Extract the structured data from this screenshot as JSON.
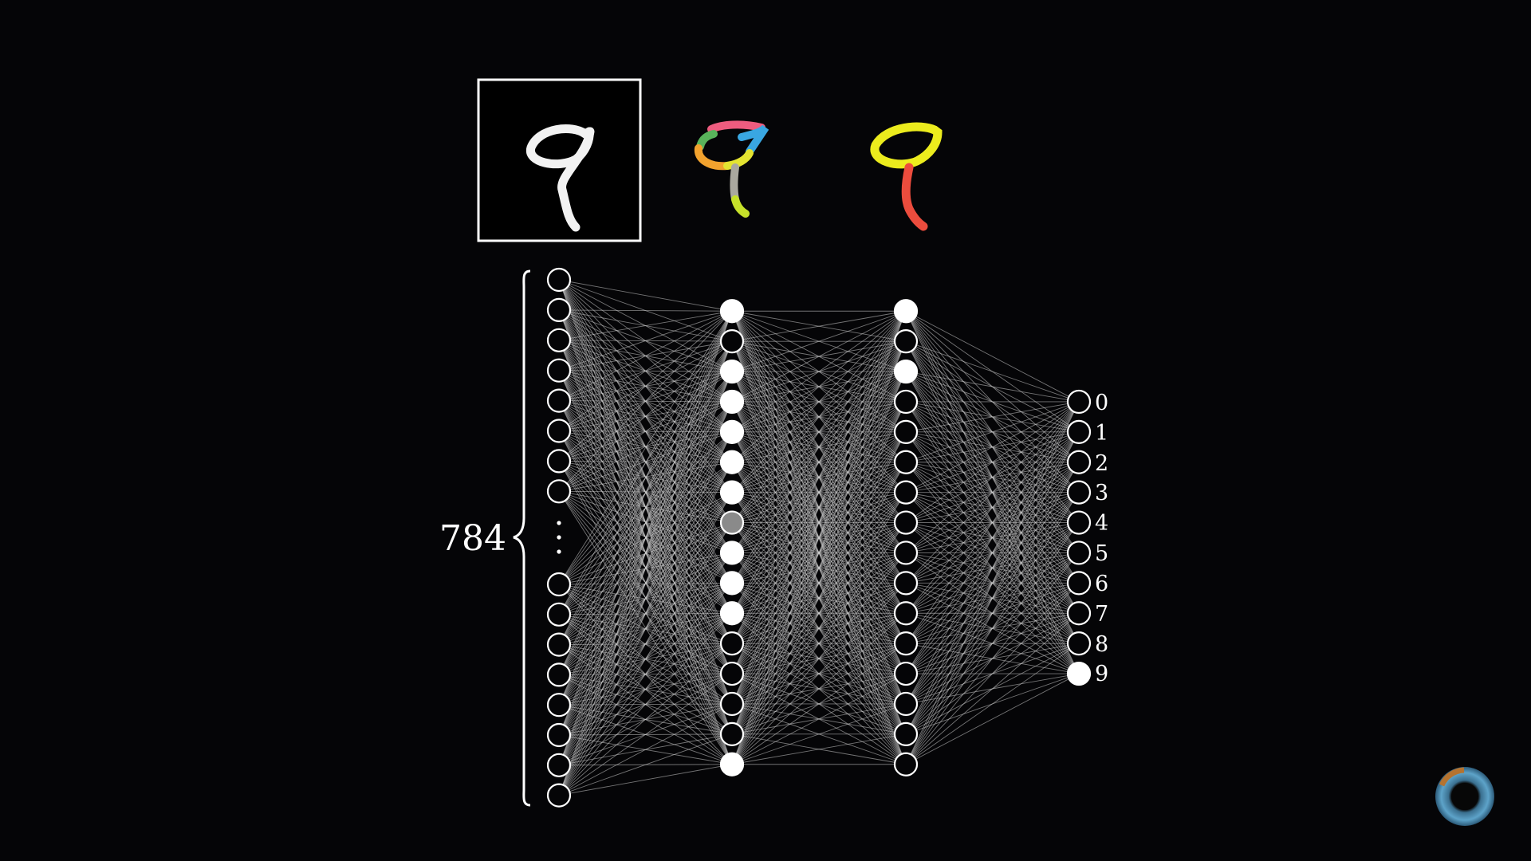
{
  "diagram": {
    "input_count_label": "784",
    "output_labels": [
      "0",
      "1",
      "2",
      "3",
      "4",
      "5",
      "6",
      "7",
      "8",
      "9"
    ],
    "digit_images": [
      {
        "name": "input-digit-nine",
        "description": "handwritten digit 9, grayscale"
      },
      {
        "name": "edge-pieces-digit-nine",
        "description": "digit 9 split into multicolored edge pieces"
      },
      {
        "name": "pattern-digit-nine",
        "description": "digit 9 split into yellow loop and red stroke"
      }
    ],
    "layers": [
      {
        "name": "input",
        "visible_neurons_top": 8,
        "visible_neurons_bottom": 8,
        "ellipsis": true
      },
      {
        "name": "hidden-1",
        "neurons": 16,
        "activations": [
          1,
          0,
          1,
          1,
          1,
          1,
          1,
          0.5,
          1,
          1,
          1,
          0,
          0,
          0,
          0,
          1
        ]
      },
      {
        "name": "hidden-2",
        "neurons": 16,
        "activations": [
          1,
          0,
          1,
          0,
          0,
          0,
          0,
          0,
          0,
          0,
          0,
          0,
          0,
          0,
          0,
          0
        ]
      },
      {
        "name": "output",
        "neurons": 10,
        "activations": [
          0,
          0,
          0,
          0,
          0,
          0,
          0,
          0,
          0,
          1
        ]
      }
    ],
    "colors": {
      "background": "#050507",
      "node_stroke": "#ffffff",
      "edge": "#cfcfcf",
      "active": "#ffffff",
      "dim": "#8a8a8a",
      "inactive": "#050507"
    }
  }
}
